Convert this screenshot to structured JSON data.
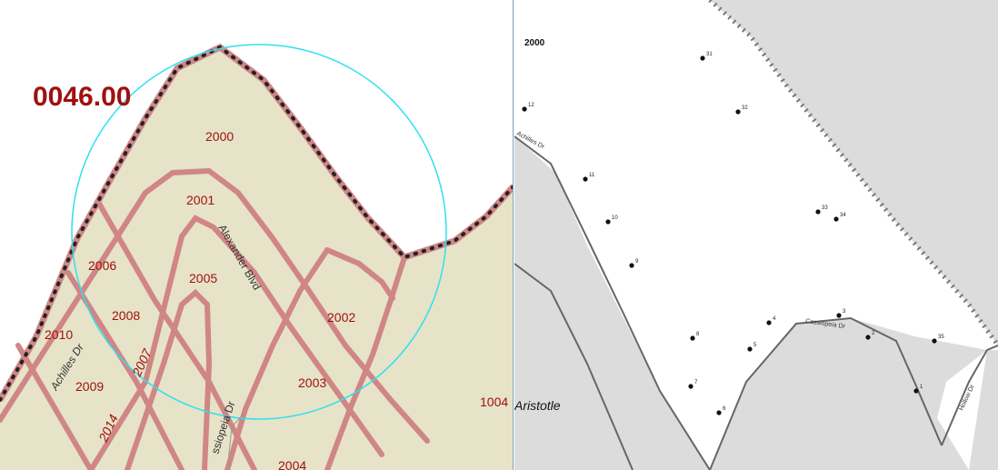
{
  "left_map": {
    "tract_label": "0046.00",
    "block_labels": {
      "b2000": "2000",
      "b2001": "2001",
      "b2002": "2002",
      "b2003": "2003",
      "b2004": "2004",
      "b2005": "2005",
      "b2006": "2006",
      "b2007": "2007",
      "b2008": "2008",
      "b2009": "2009",
      "b2010": "2010",
      "b2014": "2014",
      "b1004": "1004"
    },
    "street_labels": {
      "alexander": "Alexander Blvd",
      "achilles": "Achilles Dr",
      "cassiopeia": "ssiopeia Dr"
    },
    "colors": {
      "land": "#e6e3c8",
      "road": "#d08686",
      "label": "#a01010",
      "tract_label": "#a01010",
      "circle": "#2fe0f0",
      "boundary_dot": "#222222"
    }
  },
  "right_map": {
    "block_label": "2000",
    "place_label": "Aristotle",
    "street_labels": {
      "achilles": "Achilles Dr",
      "cassiopeia": "Cassiopeia Dr",
      "hollow": "Hollow Dr"
    },
    "points": [
      {
        "label": "1"
      },
      {
        "label": "2"
      },
      {
        "label": "3"
      },
      {
        "label": "4"
      },
      {
        "label": "5"
      },
      {
        "label": "6"
      },
      {
        "label": "7"
      },
      {
        "label": "8"
      },
      {
        "label": "9"
      },
      {
        "label": "10"
      },
      {
        "label": "11"
      },
      {
        "label": "12"
      },
      {
        "label": "31"
      },
      {
        "label": "32"
      },
      {
        "label": "33"
      },
      {
        "label": "34"
      },
      {
        "label": "35"
      }
    ],
    "colors": {
      "outside": "#dcdcdc",
      "block": "#ffffff",
      "road_edge": "#666666",
      "point": "#111111"
    }
  }
}
